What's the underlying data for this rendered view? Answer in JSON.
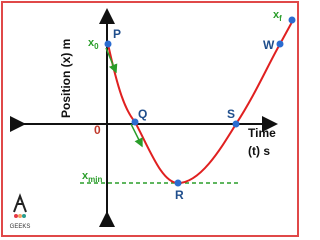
{
  "diagram": {
    "y_axis_label": "Position (x) m",
    "x_axis_label_line1": "Time",
    "x_axis_label_line2": "(t) s",
    "origin": "0",
    "points": {
      "P": "P",
      "Q": "Q",
      "R": "R",
      "S": "S",
      "W": "W"
    },
    "x0": {
      "base": "x",
      "sub": "0"
    },
    "xf": {
      "base": "x",
      "sub": "f"
    },
    "xmin": {
      "base": "x",
      "sub": "min"
    },
    "logo_text": "GEEKS"
  }
}
